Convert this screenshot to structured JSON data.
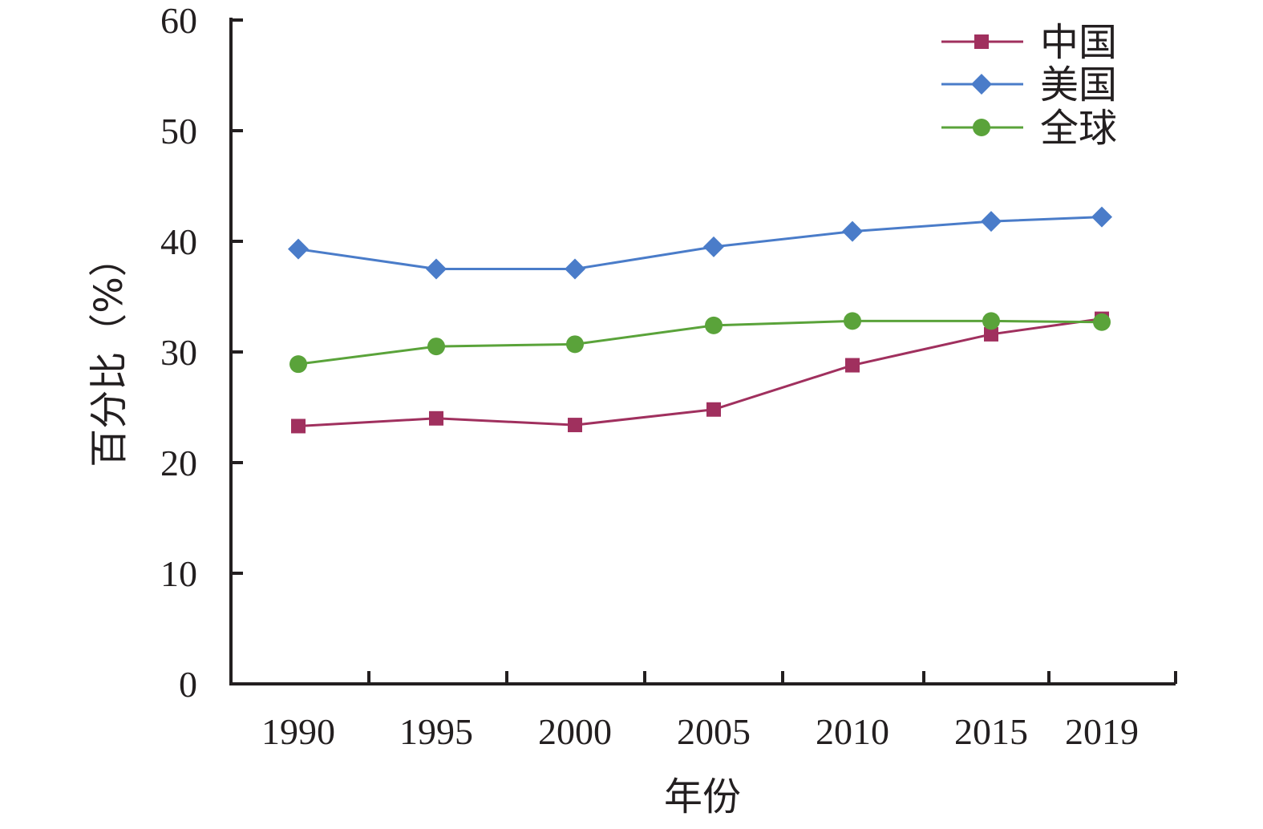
{
  "chart_data": {
    "type": "line",
    "xlabel": "年份",
    "ylabel": "百分比（%）",
    "categories": [
      "1990",
      "1995",
      "2000",
      "2005",
      "2010",
      "2015",
      "2019"
    ],
    "ylim": [
      0,
      60
    ],
    "yticks": [
      "0",
      "10",
      "20",
      "30",
      "40",
      "50",
      "60"
    ],
    "grid": false,
    "legend_position": "top-right",
    "series": [
      {
        "name": "中国",
        "marker": "square",
        "color": "#a0305e",
        "values": [
          23.3,
          24.0,
          23.4,
          24.8,
          28.8,
          31.6,
          33.0
        ]
      },
      {
        "name": "美国",
        "marker": "diamond",
        "color": "#4a7cc9",
        "values": [
          39.3,
          37.5,
          37.5,
          39.5,
          40.9,
          41.8,
          42.2
        ]
      },
      {
        "name": "全球",
        "marker": "circle",
        "color": "#5aa33a",
        "values": [
          28.9,
          30.5,
          30.7,
          32.4,
          32.8,
          32.8,
          32.7
        ]
      }
    ]
  }
}
